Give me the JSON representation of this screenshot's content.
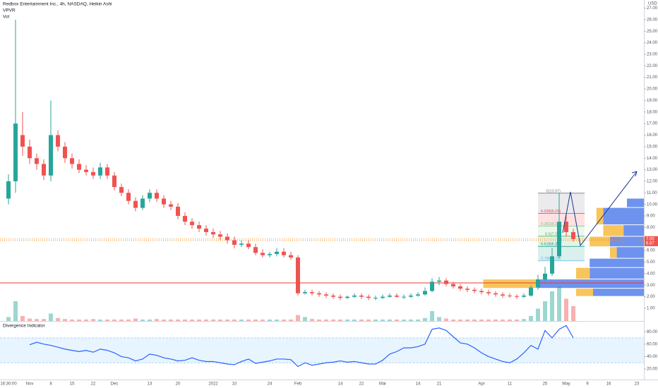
{
  "header": {
    "title": "Redbox Entertainment Inc., 4h, NASDAQ, Heikin Ashi",
    "indicators": [
      "VPVR",
      "Vol"
    ],
    "currency": "USD"
  },
  "chart_data": [
    {
      "type": "candlestick",
      "categories": [
        "16:30:00",
        null,
        null,
        "Nov",
        null,
        null,
        "8",
        null,
        null,
        "15",
        null,
        null,
        "22",
        null,
        null,
        "Dec",
        null,
        null,
        null,
        null,
        "13",
        null,
        null,
        null,
        "20",
        null,
        null,
        null,
        null,
        "2022",
        null,
        null,
        "10",
        null,
        null,
        null,
        null,
        "24",
        null,
        null,
        null,
        "Feb",
        null,
        null,
        null,
        null,
        null,
        "14",
        null,
        null,
        "22",
        null,
        null,
        "Mar",
        null,
        null,
        null,
        null,
        "14",
        null,
        null,
        "21",
        null,
        null,
        null,
        null,
        null,
        "Apr",
        null,
        null,
        null,
        "11",
        null,
        null,
        null,
        null,
        "25",
        null,
        null,
        "May",
        null,
        null,
        "9",
        null,
        null,
        "16",
        null,
        null,
        null,
        "23"
      ],
      "open": [
        10.5,
        12,
        16,
        15,
        14,
        13.5,
        12.5,
        16,
        15,
        14,
        13.5,
        13,
        12.8,
        12.5,
        13.2,
        12.5,
        11.5,
        11,
        10.3,
        9.7,
        10.5,
        11,
        10.5,
        10,
        9.8,
        9,
        8.5,
        8.2,
        7.9,
        7.6,
        7.4,
        7.2,
        6.9,
        6.5,
        6.6,
        6.3,
        5.8,
        5.6,
        5.7,
        5.9,
        5.6,
        5.4,
        2.3,
        2.4,
        2.3,
        2.2,
        2.1,
        2,
        1.9,
        2,
        2.1,
        2,
        1.9,
        1.9,
        2,
        2.1,
        2,
        2,
        2.1,
        2.2,
        2.5,
        3.3,
        3.4,
        3.1,
        2.9,
        2.7,
        2.6,
        2.5,
        2.4,
        2.3,
        2.2,
        2.1,
        2.05,
        2,
        2.1,
        2.8,
        3.5,
        4,
        5.5,
        8.5,
        7.6,
        null,
        null,
        null,
        null,
        null,
        null,
        null,
        null,
        null
      ],
      "high": [
        12.6,
        26,
        18,
        15.6,
        14.4,
        13.9,
        19,
        16.4,
        15.4,
        14.4,
        13.9,
        13.4,
        13.2,
        13.6,
        13.5,
        12.8,
        11.8,
        11.3,
        10.6,
        10.8,
        11.3,
        11.3,
        10.8,
        10.3,
        10.1,
        9.3,
        8.8,
        8.5,
        8.2,
        7.9,
        7.7,
        7.5,
        7.2,
        6.9,
        6.9,
        6.6,
        6.1,
        5.9,
        6.2,
        6.2,
        5.9,
        5.6,
        2.6,
        2.6,
        2.5,
        2.4,
        2.3,
        2.2,
        2.1,
        2.3,
        2.3,
        2.2,
        2.1,
        2.2,
        2.3,
        2.3,
        2.2,
        2.3,
        2.4,
        2.8,
        3.6,
        3.7,
        3.6,
        3.3,
        3.1,
        2.9,
        2.8,
        2.7,
        2.6,
        2.5,
        2.4,
        2.3,
        2.2,
        2.3,
        3,
        3.9,
        4.6,
        6.2,
        10.97,
        9.2,
        7.9,
        null,
        null,
        null,
        null,
        null,
        null,
        null,
        null,
        null
      ],
      "low": [
        10,
        11,
        14.2,
        13.5,
        13,
        12.1,
        12,
        14.6,
        13.6,
        13.1,
        12.7,
        12.5,
        12.2,
        12.2,
        12.2,
        11.2,
        10.7,
        10,
        9.4,
        9.5,
        10.2,
        10.2,
        9.7,
        9.5,
        8.7,
        8.2,
        7.9,
        7.6,
        7.3,
        7.1,
        6.9,
        6.6,
        6.2,
        6.3,
        6.1,
        5.6,
        5.4,
        5.4,
        5.5,
        5.4,
        5.2,
        2.1,
        2.2,
        2.1,
        2,
        1.9,
        1.8,
        1.7,
        1.8,
        1.9,
        1.8,
        1.7,
        1.7,
        1.8,
        1.9,
        1.9,
        1.8,
        1.9,
        2,
        2.1,
        2.4,
        3,
        2.9,
        2.7,
        2.5,
        2.4,
        2.3,
        2.2,
        2.1,
        2,
        1.9,
        1.9,
        1.8,
        1.9,
        2,
        2.6,
        3.3,
        3.8,
        5.3,
        7.2,
        6.8,
        null,
        null,
        null,
        null,
        null,
        null,
        null,
        null,
        null
      ],
      "close": [
        12,
        17,
        15,
        14,
        13.5,
        12.5,
        16,
        15,
        14,
        13.5,
        13,
        12.8,
        12.5,
        13.2,
        12.5,
        11.5,
        11,
        10.3,
        9.7,
        10.5,
        11,
        10.5,
        10,
        9.8,
        9,
        8.5,
        8.2,
        7.9,
        7.6,
        7.4,
        7.2,
        6.9,
        6.5,
        6.6,
        6.3,
        5.8,
        5.6,
        5.7,
        5.9,
        5.6,
        5.4,
        2.3,
        2.4,
        2.3,
        2.2,
        2.1,
        2,
        1.9,
        2,
        2.1,
        2,
        1.9,
        1.9,
        2,
        2.1,
        2,
        2,
        2.1,
        2.2,
        2.5,
        3.3,
        3.4,
        3.1,
        2.9,
        2.7,
        2.6,
        2.5,
        2.4,
        2.3,
        2.2,
        2.1,
        2.05,
        2,
        2.1,
        2.8,
        3.5,
        4,
        5.5,
        8.5,
        7.6,
        7,
        null,
        null,
        null,
        null,
        null,
        null,
        null,
        null,
        null
      ],
      "up_color": "#26a69a",
      "down_color": "#ef5350",
      "ylim": [
        -0.1,
        27.7
      ],
      "yticks": [
        {
          "value": 1,
          "label": "1.00"
        },
        {
          "value": 2,
          "label": "2.00"
        },
        {
          "value": 3,
          "label": "3.00"
        },
        {
          "value": 4,
          "label": "4.00"
        },
        {
          "value": 5,
          "label": "5.00"
        },
        {
          "value": 6,
          "label": "6.00"
        },
        {
          "value": 7,
          "label": "7.00"
        },
        {
          "value": 8,
          "label": "8.00"
        },
        {
          "value": 9,
          "label": "9.00"
        },
        {
          "value": 10,
          "label": "10.00"
        },
        {
          "value": 11,
          "label": "11.00"
        },
        {
          "value": 12,
          "label": "12.00"
        },
        {
          "value": 13,
          "label": "13.00"
        },
        {
          "value": 14,
          "label": "14.00"
        },
        {
          "value": 15,
          "label": "15.00"
        },
        {
          "value": 16,
          "label": "16.00"
        },
        {
          "value": 17,
          "label": "17.00"
        },
        {
          "value": 18,
          "label": "18.00"
        },
        {
          "value": 19,
          "label": "19.00"
        },
        {
          "value": 20,
          "label": "20.00"
        },
        {
          "value": 21,
          "label": "21.00"
        },
        {
          "value": 22,
          "label": "22.00"
        },
        {
          "value": 23,
          "label": "23.00"
        },
        {
          "value": 24,
          "label": "24.00"
        },
        {
          "value": 25,
          "label": "25.00"
        },
        {
          "value": 26,
          "label": "26.00"
        },
        {
          "value": 27,
          "label": "27.00"
        }
      ],
      "hlines": [
        {
          "value": 3.2,
          "color": "#e53935"
        }
      ],
      "last_prices": [
        {
          "value": 7,
          "label": "7.00"
        },
        {
          "value": 6.87,
          "label": "6.87"
        }
      ],
      "fib": [
        {
          "value": 10.97,
          "label": "0(10.97)",
          "color": "#787b86"
        },
        {
          "value": 9.21,
          "label": "0.236(9.21)",
          "color": "#f23645"
        },
        {
          "value": 8.12,
          "label": "0.382(8.12)",
          "color": "#81c784"
        },
        {
          "value": 7.24,
          "label": "0.5(7.24)",
          "color": "#4caf50"
        },
        {
          "value": 6.36,
          "label": "0.618(6.36)",
          "color": "#089981"
        },
        {
          "value": 5.11,
          "label": "0.786(5.11)",
          "color": "#64b5f6"
        }
      ],
      "volume": {
        "values": [
          8,
          40,
          10,
          5,
          4,
          4,
          15,
          6,
          4,
          3,
          3,
          3,
          4,
          3,
          3,
          3,
          3,
          3,
          5,
          3,
          3,
          4,
          3,
          3,
          3,
          3,
          3,
          3,
          3,
          3,
          3,
          3,
          3,
          3,
          3,
          3,
          3,
          3,
          3,
          3,
          3,
          12,
          8,
          4,
          3,
          3,
          3,
          3,
          3,
          3,
          3,
          3,
          3,
          3,
          3,
          3,
          3,
          3,
          3,
          6,
          20,
          8,
          5,
          3,
          3,
          3,
          3,
          3,
          3,
          3,
          3,
          3,
          3,
          4,
          10,
          25,
          40,
          60,
          70,
          45,
          30,
          null,
          null,
          null,
          null,
          null,
          null,
          null,
          null,
          null
        ],
        "ylim": [
          0,
          100
        ]
      },
      "vpvr": {
        "bins": [
          2.0,
          2.7,
          3.5,
          4.5,
          5.3,
          6.3,
          7.2,
          8.2,
          9.7,
          10.5
        ],
        "up": [
          25,
          80,
          20,
          0,
          10,
          30,
          30,
          10,
          0
        ],
        "down": [
          75,
          157,
          80,
          80,
          40,
          50,
          30,
          60,
          25
        ],
        "xlim": [
          0,
          250
        ],
        "up_color": "#f7b731",
        "down_color": "#3d6fe8"
      }
    },
    {
      "type": "line",
      "title": "Divergence Indicator",
      "color": "#2962ff",
      "values": [
        null,
        null,
        null,
        59,
        63,
        60,
        58,
        55,
        52,
        50,
        48,
        50,
        47,
        52,
        50,
        46,
        40,
        38,
        33,
        36,
        44,
        42,
        38,
        36,
        33,
        34,
        38,
        34,
        32,
        32,
        30,
        28,
        27,
        32,
        36,
        29,
        31,
        33,
        36,
        36,
        35,
        24,
        30,
        26,
        28,
        30,
        31,
        33,
        31,
        32,
        30,
        28,
        28,
        34,
        44,
        48,
        54,
        54,
        56,
        60,
        84,
        86,
        82,
        72,
        62,
        60,
        54,
        46,
        40,
        36,
        32,
        30,
        36,
        46,
        58,
        52,
        82,
        70,
        84,
        90,
        70,
        null,
        null,
        null,
        null,
        null,
        null,
        null,
        null,
        null
      ],
      "ylim": [
        3,
        95
      ],
      "yticks": [
        {
          "value": 20,
          "label": "20.00"
        },
        {
          "value": 40,
          "label": "40.00"
        },
        {
          "value": 60,
          "label": "60.00"
        },
        {
          "value": 80,
          "label": "80.00"
        }
      ],
      "band": [
        30,
        70
      ]
    }
  ]
}
